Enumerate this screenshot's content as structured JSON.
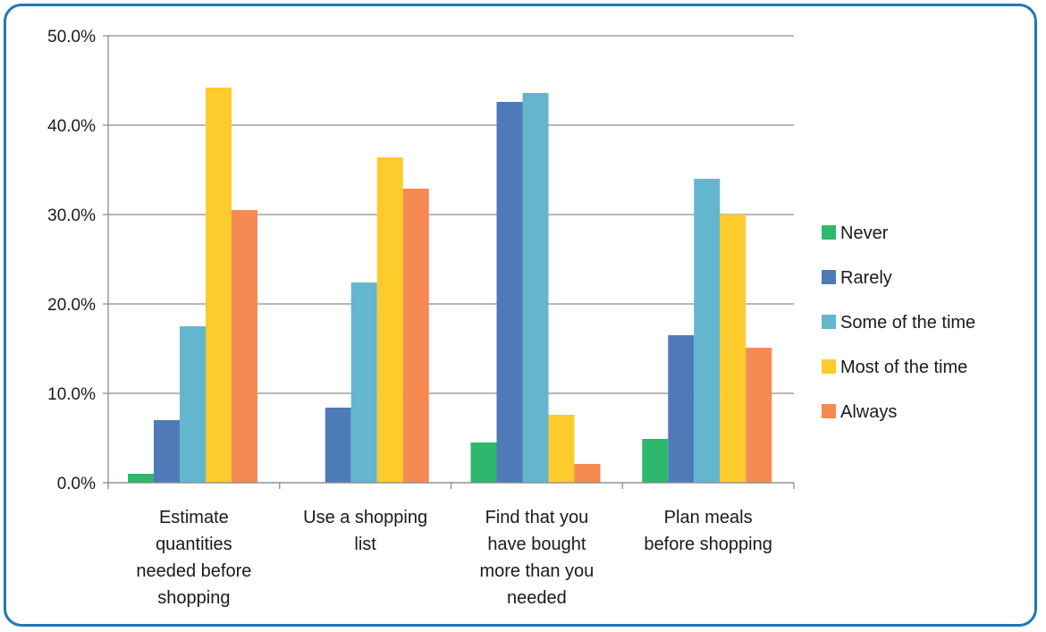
{
  "chart_data": {
    "type": "bar",
    "categories": [
      [
        "Estimate",
        "quantities",
        "needed before",
        "shopping"
      ],
      [
        "Use a shopping",
        "list"
      ],
      [
        "Find that you",
        "have bought",
        "more than you",
        "needed"
      ],
      [
        "Plan meals",
        "before shopping"
      ]
    ],
    "series": [
      {
        "name": "Never",
        "color": "#2eb86b",
        "values": [
          1.0,
          0.0,
          4.5,
          4.9
        ]
      },
      {
        "name": "Rarely",
        "color": "#4f7ab8",
        "values": [
          7.0,
          8.4,
          42.6,
          16.5
        ]
      },
      {
        "name": "Some of the time",
        "color": "#63b6ce",
        "values": [
          17.5,
          22.4,
          43.6,
          34.0
        ]
      },
      {
        "name": "Most of the time",
        "color": "#fdcb2c",
        "values": [
          44.2,
          36.4,
          7.6,
          30.0
        ]
      },
      {
        "name": "Always",
        "color": "#f58a53",
        "values": [
          30.5,
          32.9,
          2.1,
          15.1
        ]
      }
    ],
    "yticks": [
      "0.0%",
      "10.0%",
      "20.0%",
      "30.0%",
      "40.0%",
      "50.0%"
    ],
    "ylim": [
      0,
      50
    ],
    "grid": true,
    "legend_position": "right"
  },
  "colors": {
    "frame_border": "#1f78b4",
    "gridline": "#8c8c8c"
  }
}
